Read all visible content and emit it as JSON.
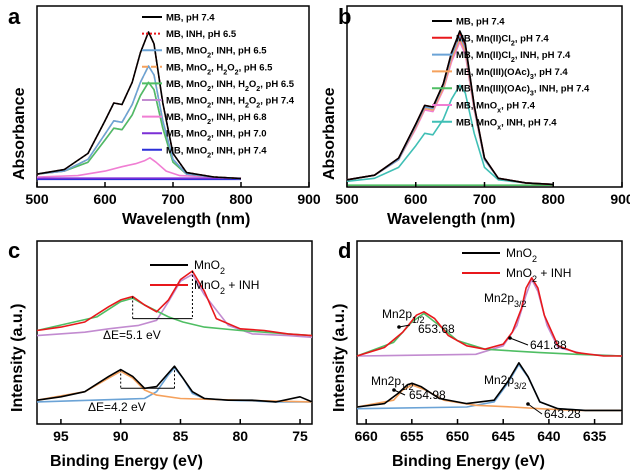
{
  "chart_data": [
    {
      "panel": "a",
      "type": "line",
      "xlabel": "Wavelength (nm)",
      "ylabel": "Absorbance",
      "xlim": [
        500,
        900
      ],
      "xticks": [
        500,
        600,
        700,
        800,
        900
      ],
      "legend_placement": "top-right",
      "series": [
        {
          "name": "MB, pH 7.4",
          "color": "#000000",
          "dash": "solid",
          "x": [
            500,
            540,
            575,
            600,
            613,
            625,
            640,
            652,
            664,
            672,
            685,
            700,
            720,
            760,
            800
          ],
          "y": [
            0.04,
            0.07,
            0.18,
            0.4,
            0.52,
            0.51,
            0.66,
            0.86,
            1.0,
            0.92,
            0.52,
            0.18,
            0.05,
            0.02,
            0.01
          ]
        },
        {
          "name": "MB, INH, pH 6.5",
          "color": "#e8181c",
          "dash": "dotted",
          "x": [
            500,
            540,
            575,
            600,
            613,
            625,
            640,
            652,
            664,
            672,
            685,
            700,
            720,
            760,
            800
          ],
          "y": [
            0.04,
            0.07,
            0.18,
            0.4,
            0.52,
            0.51,
            0.66,
            0.86,
            1.0,
            0.92,
            0.52,
            0.18,
            0.05,
            0.02,
            0.01
          ]
        },
        {
          "name": "MB, MnO2, INH, pH 6.5",
          "color": "#6ba3d6",
          "dash": "solid",
          "x": [
            500,
            540,
            575,
            600,
            613,
            625,
            640,
            652,
            664,
            672,
            685,
            700,
            720,
            760,
            800
          ],
          "y": [
            0.04,
            0.06,
            0.14,
            0.31,
            0.4,
            0.39,
            0.51,
            0.66,
            0.77,
            0.71,
            0.4,
            0.14,
            0.04,
            0.02,
            0.01
          ]
        },
        {
          "name": "MB, MnO2, H2O2, pH 6.5",
          "color": "#f5a15c",
          "dash": "dashed",
          "x": [
            500,
            540,
            575,
            600,
            613,
            625,
            640,
            652,
            664,
            672,
            685,
            700,
            720,
            760,
            800
          ],
          "y": [
            0.04,
            0.06,
            0.14,
            0.31,
            0.4,
            0.39,
            0.51,
            0.66,
            0.77,
            0.71,
            0.4,
            0.14,
            0.04,
            0.02,
            0.01
          ]
        },
        {
          "name": "MB, MnO2, INH, H2O2, pH 6.5",
          "color": "#4fbe63",
          "dash": "solid",
          "x": [
            500,
            540,
            575,
            600,
            613,
            625,
            640,
            652,
            664,
            672,
            685,
            700,
            720,
            760,
            800
          ],
          "y": [
            0.04,
            0.06,
            0.12,
            0.27,
            0.35,
            0.34,
            0.44,
            0.57,
            0.66,
            0.61,
            0.35,
            0.12,
            0.04,
            0.02,
            0.01
          ]
        },
        {
          "name": "MB, MnO2, INH, H2O2, pH 7.4",
          "color": "#c28bd0",
          "dash": "solid",
          "x": [
            500,
            540,
            575,
            600,
            613,
            625,
            640,
            652,
            664,
            672,
            685,
            700,
            720,
            760,
            800
          ],
          "y": [
            0.04,
            0.06,
            0.12,
            0.27,
            0.35,
            0.34,
            0.44,
            0.57,
            0.66,
            0.61,
            0.35,
            0.12,
            0.04,
            0.02,
            0.01
          ]
        },
        {
          "name": "MB, MnO2, INH, pH 6.8",
          "color": "#f07ed3",
          "dash": "solid",
          "x": [
            500,
            560,
            600,
            625,
            645,
            658,
            666,
            675,
            690,
            710,
            760,
            800
          ],
          "y": [
            0.02,
            0.03,
            0.06,
            0.09,
            0.11,
            0.13,
            0.15,
            0.12,
            0.06,
            0.03,
            0.02,
            0.01
          ]
        },
        {
          "name": "MB, MnO2, INH, pH 7.0",
          "color": "#7b2fd6",
          "dash": "solid",
          "x": [
            500,
            600,
            700,
            800
          ],
          "y": [
            0.012,
            0.012,
            0.012,
            0.012
          ]
        },
        {
          "name": "MB, MnO2, INH, pH 7.4",
          "color": "#2b2fd8",
          "dash": "solid",
          "x": [
            500,
            600,
            700,
            800
          ],
          "y": [
            0.005,
            0.005,
            0.005,
            0.005
          ]
        }
      ]
    },
    {
      "panel": "b",
      "type": "line",
      "xlabel": "Wavelength (nm)",
      "ylabel": "Absorbance",
      "xlim": [
        500,
        900
      ],
      "xticks": [
        500,
        600,
        700,
        800,
        900
      ],
      "legend_placement": "top-right",
      "series": [
        {
          "name": "MB, pH 7.4",
          "color": "#000000",
          "dash": "solid",
          "x": [
            500,
            540,
            575,
            600,
            613,
            625,
            640,
            652,
            664,
            672,
            685,
            700,
            720,
            760,
            800
          ],
          "y": [
            0.04,
            0.07,
            0.18,
            0.4,
            0.52,
            0.51,
            0.66,
            0.86,
            1.0,
            0.92,
            0.52,
            0.18,
            0.05,
            0.02,
            0.01
          ]
        },
        {
          "name": "MB, Mn(II)Cl2, pH 7.4",
          "color": "#e8181c",
          "dash": "solid",
          "x": [
            500,
            540,
            575,
            600,
            613,
            625,
            640,
            652,
            664,
            672,
            685,
            700,
            720,
            760,
            800
          ],
          "y": [
            0.04,
            0.07,
            0.18,
            0.4,
            0.52,
            0.51,
            0.66,
            0.86,
            0.99,
            0.91,
            0.52,
            0.18,
            0.05,
            0.02,
            0.01
          ]
        },
        {
          "name": "MB, Mn(II)Cl2, INH, pH 7.4",
          "color": "#6ba3d6",
          "dash": "solid",
          "x": [
            500,
            540,
            575,
            600,
            613,
            625,
            640,
            652,
            664,
            672,
            685,
            700,
            720,
            760,
            800
          ],
          "y": [
            0.04,
            0.07,
            0.17,
            0.39,
            0.51,
            0.5,
            0.65,
            0.84,
            0.97,
            0.89,
            0.51,
            0.17,
            0.05,
            0.02,
            0.01
          ]
        },
        {
          "name": "MB, Mn(III)(OAc)3, pH 7.4",
          "color": "#f5a15c",
          "dash": "solid",
          "x": [
            500,
            540,
            575,
            600,
            613,
            625,
            640,
            652,
            664,
            672,
            685,
            700,
            720,
            760,
            800
          ],
          "y": [
            0.04,
            0.07,
            0.17,
            0.38,
            0.5,
            0.49,
            0.63,
            0.82,
            0.95,
            0.87,
            0.5,
            0.17,
            0.05,
            0.02,
            0.01
          ]
        },
        {
          "name": "MB, Mn(III)(OAc)3, INH, pH 7.4",
          "color": "#4fbe63",
          "dash": "solid",
          "x": [
            500,
            600,
            700,
            800
          ],
          "y": [
            0.005,
            0.005,
            0.005,
            0.005
          ]
        },
        {
          "name": "MB, MnOx, pH 7.4",
          "color": "#f07ed3",
          "dash": "solid",
          "x": [
            500,
            540,
            575,
            600,
            613,
            625,
            640,
            652,
            664,
            672,
            685,
            700,
            720,
            760,
            800
          ],
          "y": [
            0.04,
            0.07,
            0.17,
            0.37,
            0.49,
            0.48,
            0.62,
            0.8,
            0.93,
            0.85,
            0.49,
            0.17,
            0.05,
            0.02,
            0.01
          ]
        },
        {
          "name": "MB, MnOx, INH, pH 7.4",
          "color": "#3fbfb5",
          "dash": "solid",
          "x": [
            500,
            540,
            575,
            600,
            613,
            625,
            640,
            652,
            664,
            672,
            685,
            700,
            720,
            760,
            800
          ],
          "y": [
            0.03,
            0.05,
            0.12,
            0.26,
            0.34,
            0.33,
            0.43,
            0.56,
            0.65,
            0.6,
            0.34,
            0.12,
            0.04,
            0.02,
            0.01
          ]
        }
      ]
    },
    {
      "panel": "c",
      "type": "line",
      "xlabel": "Binding Energy (eV)",
      "ylabel": "Intensity (a.u.)",
      "xlim": [
        97,
        74
      ],
      "xticks": [
        95,
        90,
        85,
        80,
        75
      ],
      "legend_placement": "top-right",
      "annotations": [
        "ΔE=5.1 eV",
        "ΔE=4.2 eV"
      ],
      "series": [
        {
          "name": "MnO2",
          "color": "#000000",
          "dash": "solid",
          "x": [
            97,
            95,
            93,
            91,
            90,
            89,
            88,
            87,
            86,
            85.5,
            84.8,
            84,
            83,
            81,
            79,
            77,
            75,
            74
          ],
          "y": [
            0.14,
            0.16,
            0.19,
            0.28,
            0.32,
            0.28,
            0.21,
            0.22,
            0.3,
            0.34,
            0.27,
            0.19,
            0.15,
            0.14,
            0.14,
            0.13,
            0.16,
            0.13
          ]
        },
        {
          "name": "MnO2 + INH",
          "color": "#e8181c",
          "dash": "solid",
          "x": [
            97,
            95,
            93,
            91,
            90,
            89,
            88,
            87,
            86,
            85,
            84,
            83,
            82,
            80,
            78,
            76,
            74
          ],
          "y": [
            0.55,
            0.57,
            0.6,
            0.69,
            0.73,
            0.75,
            0.7,
            0.66,
            0.73,
            0.85,
            0.9,
            0.78,
            0.62,
            0.56,
            0.55,
            0.53,
            0.52
          ]
        },
        {
          "name": "",
          "color": "#4fbe63",
          "dash": "solid",
          "x": [
            97,
            92,
            90,
            89,
            88,
            86,
            84.8,
            83,
            80,
            76,
            74
          ],
          "y": [
            0.55,
            0.63,
            0.72,
            0.74,
            0.7,
            0.63,
            0.6,
            0.57,
            0.55,
            0.53,
            0.52
          ]
        },
        {
          "name": "",
          "color": "#c28bd0",
          "dash": "solid",
          "x": [
            97,
            93,
            91,
            88.5,
            87,
            86,
            85,
            84,
            83,
            81,
            79,
            76,
            74
          ],
          "y": [
            0.52,
            0.54,
            0.56,
            0.58,
            0.61,
            0.72,
            0.84,
            0.88,
            0.76,
            0.58,
            0.53,
            0.52,
            0.51
          ]
        },
        {
          "name": "",
          "color": "#f5a15c",
          "dash": "solid",
          "x": [
            97,
            93,
            91,
            90,
            89,
            88,
            87,
            85,
            80,
            74
          ],
          "y": [
            0.14,
            0.19,
            0.27,
            0.31,
            0.27,
            0.2,
            0.17,
            0.15,
            0.14,
            0.13
          ]
        },
        {
          "name": "",
          "color": "#6ba3d6",
          "dash": "solid",
          "x": [
            97,
            88,
            87,
            86,
            85.5,
            84.8,
            84,
            83,
            81,
            77,
            74
          ],
          "y": [
            0.13,
            0.15,
            0.19,
            0.29,
            0.33,
            0.27,
            0.18,
            0.15,
            0.14,
            0.13,
            0.13
          ]
        }
      ]
    },
    {
      "panel": "d",
      "type": "line",
      "xlabel": "Binding Energy (eV)",
      "ylabel": "Intensity (a.u.)",
      "xlim": [
        661,
        632
      ],
      "xticks": [
        660,
        655,
        650,
        645,
        640,
        635
      ],
      "legend_placement": "top-right",
      "annotations": [
        "Mn2p1/2",
        "653.68",
        "Mn2p3/2",
        "641.88",
        "Mn2p1/2",
        "654.98",
        "Mn2p3/2",
        "643.28"
      ],
      "series": [
        {
          "name": "MnO2",
          "color": "#000000",
          "dash": "solid",
          "x": [
            661,
            658,
            656.5,
            655.5,
            654.98,
            654,
            652,
            649,
            646,
            644.5,
            643.28,
            642.3,
            641,
            639,
            636,
            633,
            632
          ],
          "y": [
            0.1,
            0.12,
            0.18,
            0.23,
            0.24,
            0.22,
            0.15,
            0.12,
            0.14,
            0.25,
            0.36,
            0.28,
            0.13,
            0.09,
            0.08,
            0.08,
            0.08
          ]
        },
        {
          "name": "MnO2 + INH",
          "color": "#e8181c",
          "dash": "solid",
          "x": [
            661,
            658,
            656,
            654.5,
            653.68,
            652.5,
            651,
            649,
            647,
            645,
            644,
            643,
            642.5,
            641.88,
            641.2,
            640.5,
            639,
            637,
            634,
            632
          ],
          "y": [
            0.4,
            0.45,
            0.54,
            0.64,
            0.66,
            0.62,
            0.52,
            0.46,
            0.44,
            0.47,
            0.54,
            0.68,
            0.8,
            0.86,
            0.8,
            0.64,
            0.46,
            0.42,
            0.4,
            0.4
          ]
        },
        {
          "name": "",
          "color": "#4fbe63",
          "dash": "solid",
          "x": [
            661,
            657,
            655,
            653.68,
            652,
            650,
            647,
            644,
            641,
            637,
            632
          ],
          "y": [
            0.4,
            0.48,
            0.6,
            0.65,
            0.58,
            0.49,
            0.44,
            0.43,
            0.42,
            0.41,
            0.4
          ]
        },
        {
          "name": "",
          "color": "#c28bd0",
          "dash": "solid",
          "x": [
            661,
            648,
            645,
            643.5,
            642.5,
            641.88,
            641.2,
            640.2,
            639,
            636,
            632
          ],
          "y": [
            0.4,
            0.41,
            0.46,
            0.58,
            0.76,
            0.85,
            0.78,
            0.58,
            0.45,
            0.41,
            0.4
          ]
        },
        {
          "name": "",
          "color": "#f5a15c",
          "dash": "solid",
          "x": [
            661,
            657,
            656,
            654.98,
            653.5,
            651.5,
            648,
            644,
            641,
            637,
            632
          ],
          "y": [
            0.1,
            0.14,
            0.2,
            0.23,
            0.2,
            0.14,
            0.11,
            0.1,
            0.09,
            0.08,
            0.08
          ]
        },
        {
          "name": "",
          "color": "#6ba3d6",
          "dash": "solid",
          "x": [
            661,
            649,
            646,
            644.5,
            643.28,
            642.2,
            641,
            639,
            636,
            632
          ],
          "y": [
            0.09,
            0.1,
            0.13,
            0.24,
            0.35,
            0.27,
            0.13,
            0.09,
            0.08,
            0.08
          ]
        }
      ]
    }
  ]
}
